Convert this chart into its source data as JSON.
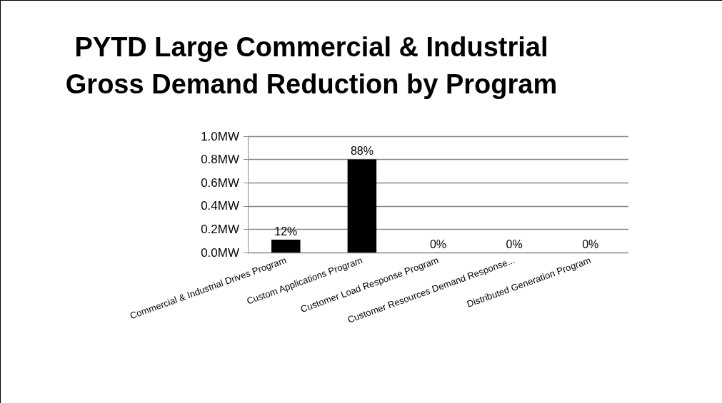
{
  "chart_data": {
    "type": "bar",
    "title": "PYTD Large Commercial & Industrial\nGross Demand Reduction by Program",
    "categories": [
      "Commercial & Industrial Drives Program",
      "Custom Applications Program",
      "Customer Load Response Program",
      "Customer Resources Demand Response...",
      "Distributed Generation Program"
    ],
    "values": [
      0.11,
      0.8,
      0,
      0,
      0
    ],
    "color": "#000000",
    "annotations": [
      {
        "text": "12%",
        "x": "Commercial & Industrial Drives Program",
        "y": 0.11
      },
      {
        "text": "88%",
        "x": "Custom Applications Program",
        "y": 0.8
      },
      {
        "text": "0%",
        "x": "Customer Load Response Program",
        "y": 0
      },
      {
        "text": "0%",
        "x": "Customer Resources Demand Response...",
        "y": 0
      },
      {
        "text": "0%",
        "x": "Distributed Generation Program",
        "y": 0
      }
    ],
    "ylim": [
      0,
      1
    ],
    "yticks": [
      {
        "value": 0,
        "label": "0.0MW"
      },
      {
        "value": 0.2,
        "label": "0.2MW"
      },
      {
        "value": 0.4,
        "label": "0.4MW"
      },
      {
        "value": 0.6,
        "label": "0.6MW"
      },
      {
        "value": 0.8,
        "label": "0.8MW"
      },
      {
        "value": 1,
        "label": "1.0MW"
      }
    ],
    "grid": "y"
  }
}
